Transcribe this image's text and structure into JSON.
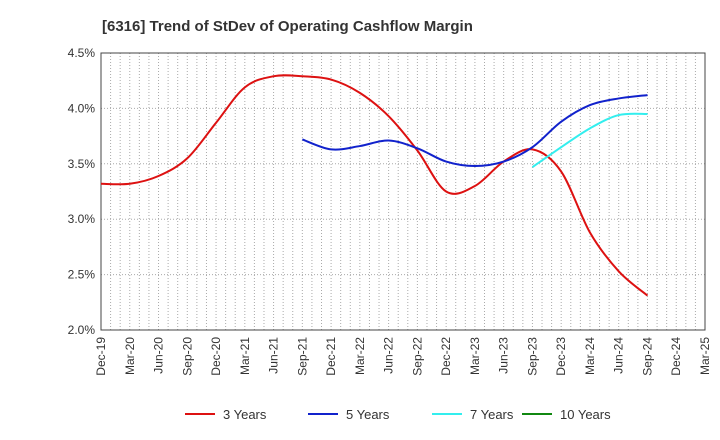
{
  "chart_data": {
    "type": "line",
    "title": "[6316]  Trend of StDev of Operating Cashflow Margin",
    "xlabel": "",
    "ylabel": "",
    "ylim": [
      2.0,
      4.5
    ],
    "y_ticks": [
      "2.0%",
      "2.5%",
      "3.0%",
      "3.5%",
      "4.0%",
      "4.5%"
    ],
    "y_tick_values": [
      2.0,
      2.5,
      3.0,
      3.5,
      4.0,
      4.5
    ],
    "categories": [
      "Dec-19",
      "Mar-20",
      "Jun-20",
      "Sep-20",
      "Dec-20",
      "Mar-21",
      "Jun-21",
      "Sep-21",
      "Dec-21",
      "Mar-22",
      "Jun-22",
      "Sep-22",
      "Dec-22",
      "Mar-23",
      "Jun-23",
      "Sep-23",
      "Dec-23",
      "Mar-24",
      "Jun-24",
      "Sep-24",
      "Dec-24",
      "Mar-25"
    ],
    "grid": true,
    "legend_position": "bottom",
    "series": [
      {
        "name": "3 Years",
        "color": "#dd1111",
        "values": [
          3.32,
          3.32,
          3.39,
          3.55,
          3.87,
          4.19,
          4.29,
          4.29,
          4.26,
          4.14,
          3.93,
          3.62,
          3.25,
          3.3,
          3.52,
          3.63,
          3.43,
          2.88,
          2.53,
          2.31,
          null,
          null
        ]
      },
      {
        "name": "5 Years",
        "color": "#1122cc",
        "values": [
          null,
          null,
          null,
          null,
          null,
          null,
          null,
          3.72,
          3.63,
          3.66,
          3.71,
          3.64,
          3.52,
          3.48,
          3.52,
          3.65,
          3.88,
          4.03,
          4.09,
          4.12,
          null,
          null
        ]
      },
      {
        "name": "7 Years",
        "color": "#33eeee",
        "values": [
          null,
          null,
          null,
          null,
          null,
          null,
          null,
          null,
          null,
          null,
          null,
          null,
          null,
          null,
          null,
          3.47,
          3.65,
          3.82,
          3.94,
          3.95,
          null,
          null
        ]
      },
      {
        "name": "10 Years",
        "color": "#118811",
        "values": [
          null,
          null,
          null,
          null,
          null,
          null,
          null,
          null,
          null,
          null,
          null,
          null,
          null,
          null,
          null,
          null,
          null,
          null,
          null,
          null,
          null,
          null
        ]
      }
    ]
  }
}
